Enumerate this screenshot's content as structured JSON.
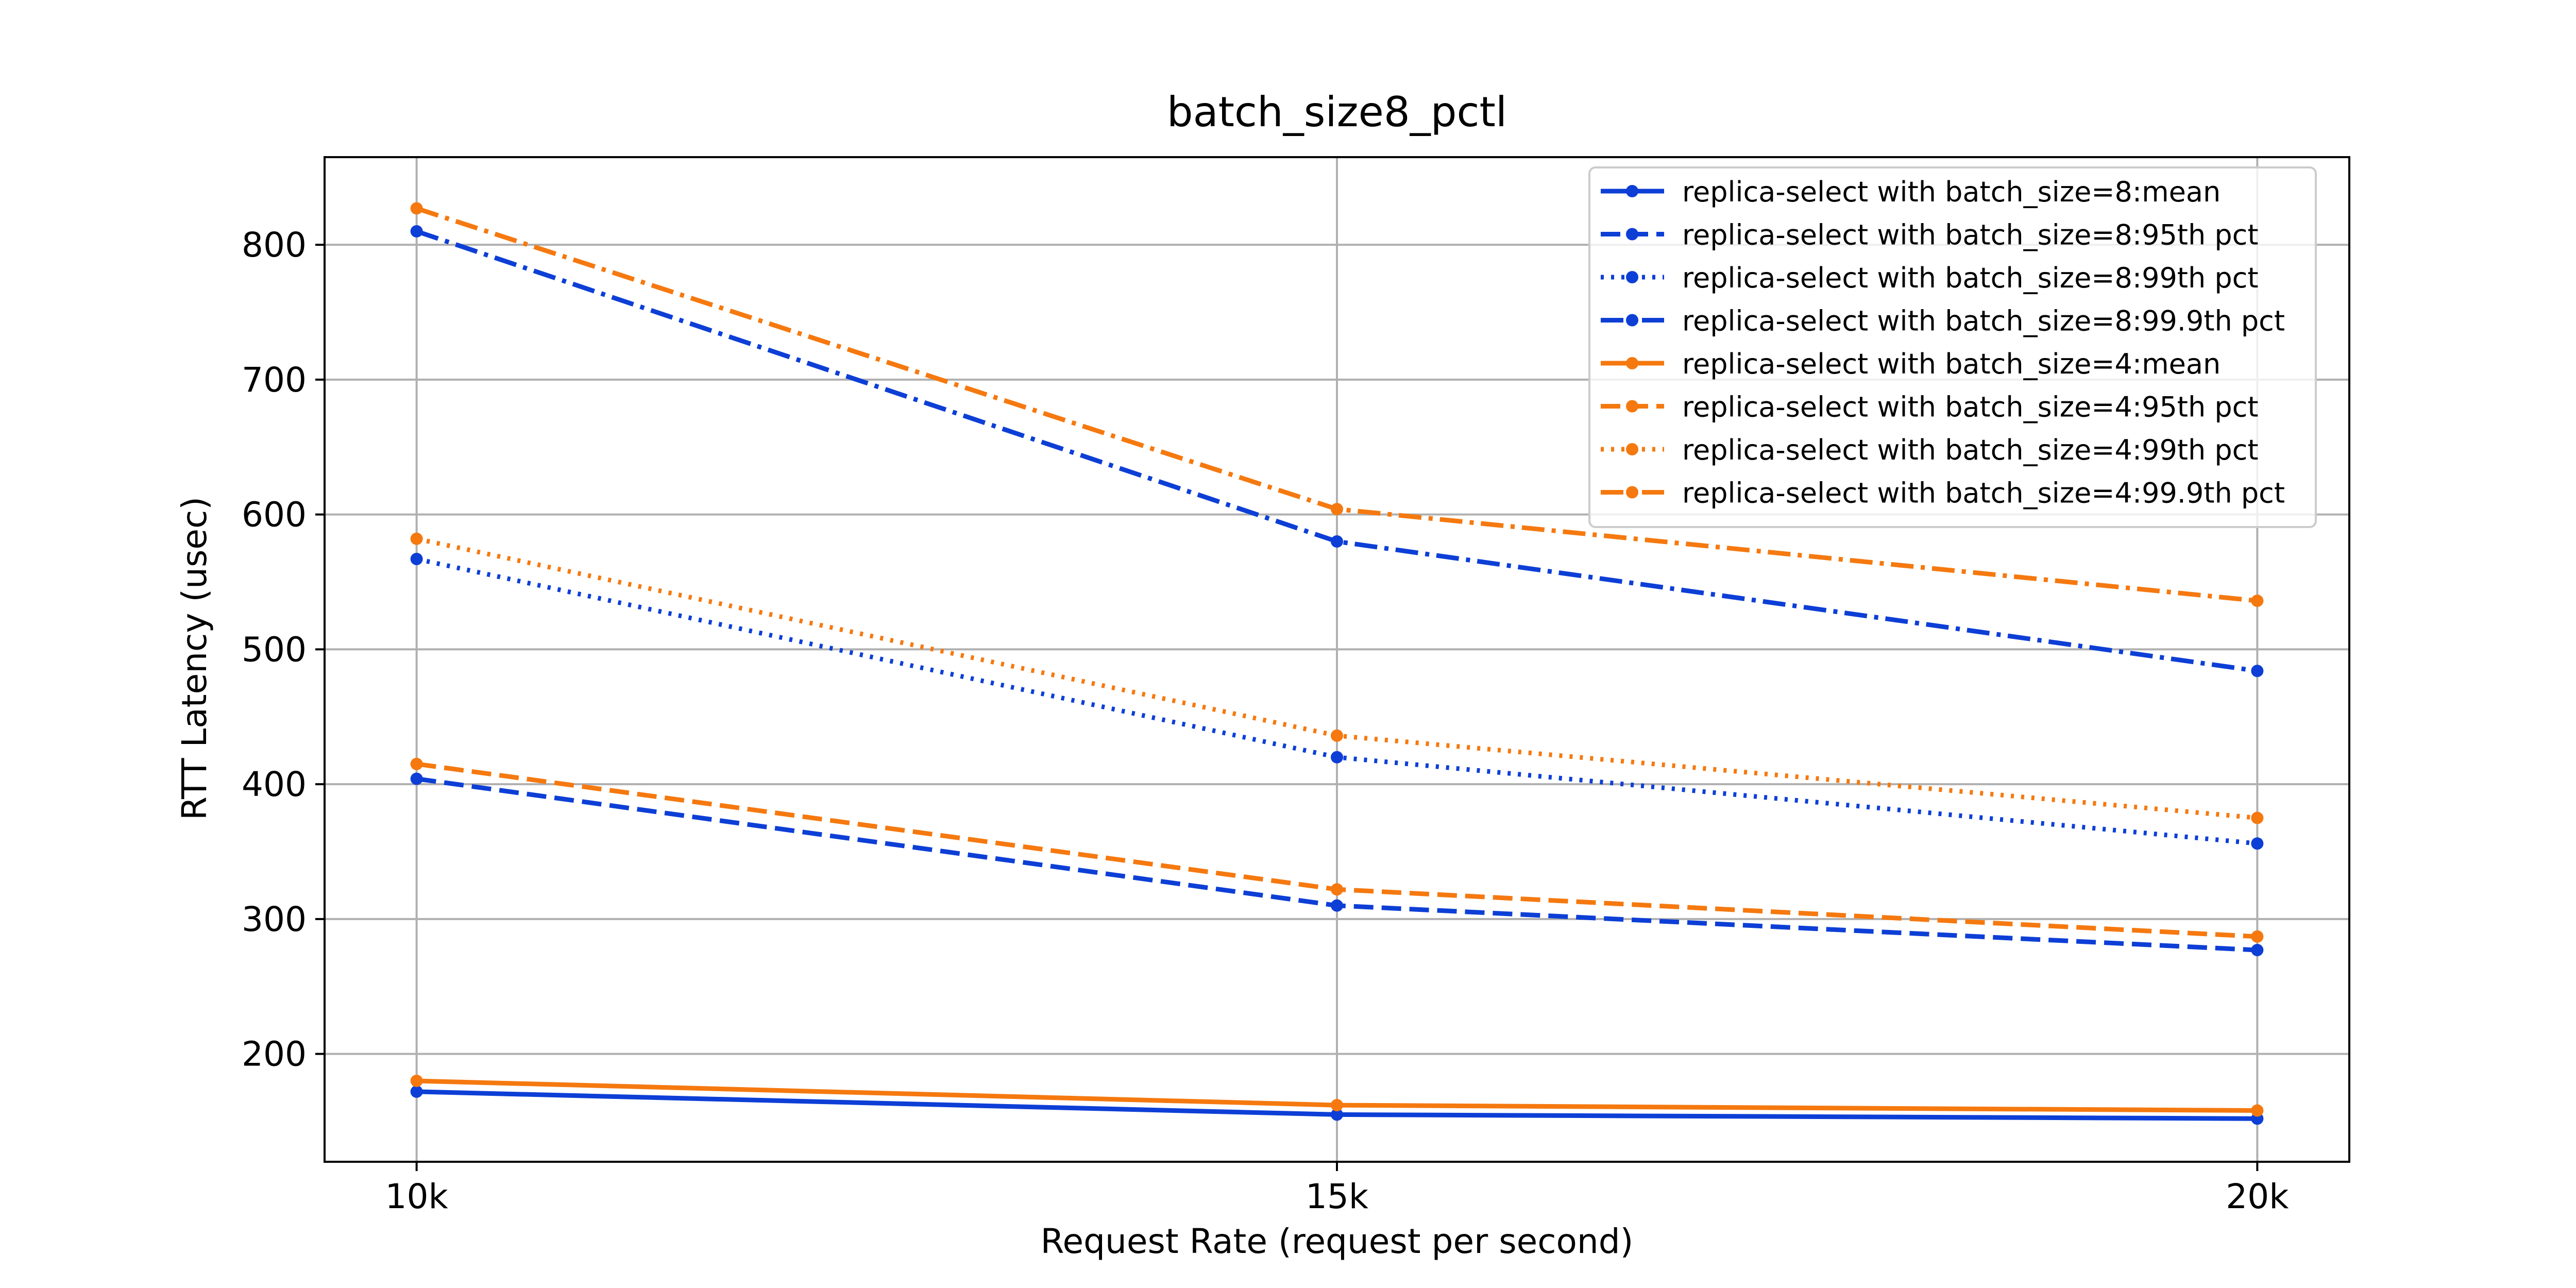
{
  "chart_data": {
    "type": "line",
    "title": "batch_size8_pctl",
    "xlabel": "Request Rate (request per second)",
    "ylabel": "RTT Latency (usec)",
    "categories": [
      "10k",
      "15k",
      "20k"
    ],
    "x": [
      10,
      15,
      20
    ],
    "xlim": [
      9.5,
      20.5
    ],
    "ylim": [
      120,
      865
    ],
    "yticks": [
      200,
      300,
      400,
      500,
      600,
      700,
      800
    ],
    "grid": true,
    "legend_position": "upper right",
    "colors": {
      "batch8": "#0d3fd6",
      "batch4": "#f5790f"
    },
    "series": [
      {
        "name": "replica-select with batch_size=8:mean",
        "group": "batch8",
        "style": "solid",
        "values": [
          172,
          155,
          152
        ]
      },
      {
        "name": "replica-select with batch_size=8:95th pct",
        "group": "batch8",
        "style": "dashed",
        "values": [
          404,
          310,
          277
        ]
      },
      {
        "name": "replica-select with batch_size=8:99th pct",
        "group": "batch8",
        "style": "dotted",
        "values": [
          567,
          420,
          356
        ]
      },
      {
        "name": "replica-select with batch_size=8:99.9th pct",
        "group": "batch8",
        "style": "dashdot",
        "values": [
          810,
          580,
          484
        ]
      },
      {
        "name": "replica-select with batch_size=4:mean",
        "group": "batch4",
        "style": "solid",
        "values": [
          180,
          162,
          158
        ]
      },
      {
        "name": "replica-select with batch_size=4:95th pct",
        "group": "batch4",
        "style": "dashed",
        "values": [
          415,
          322,
          287
        ]
      },
      {
        "name": "replica-select with batch_size=4:99th pct",
        "group": "batch4",
        "style": "dotted",
        "values": [
          582,
          436,
          375
        ]
      },
      {
        "name": "replica-select with batch_size=4:99.9th pct",
        "group": "batch4",
        "style": "dashdot",
        "values": [
          827,
          604,
          536
        ]
      }
    ]
  }
}
